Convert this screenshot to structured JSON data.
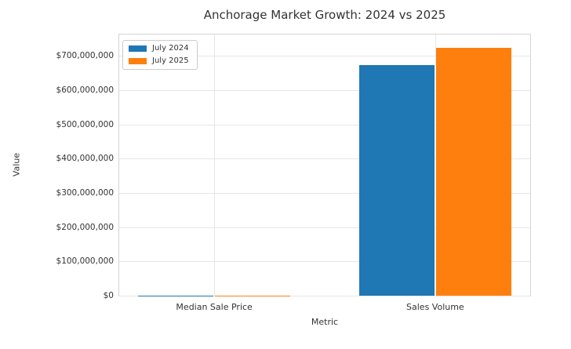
{
  "chart_data": {
    "type": "bar",
    "title": "Anchorage Market Growth: 2024 vs 2025",
    "xlabel": "Metric",
    "ylabel": "Value",
    "categories": [
      "Median Sale Price",
      "Sales Volume"
    ],
    "series": [
      {
        "name": "July 2024",
        "color": "#1f77b4",
        "values": [
          400000,
          673000000
        ]
      },
      {
        "name": "July 2025",
        "color": "#ff7f0e",
        "values": [
          450000,
          725000000
        ]
      }
    ],
    "yticks": {
      "values": [
        0,
        100000000,
        200000000,
        300000000,
        400000000,
        500000000,
        600000000,
        700000000
      ],
      "labels": [
        "$0",
        "$100,000,000",
        "$200,000,000",
        "$300,000,000",
        "$400,000,000",
        "$500,000,000",
        "$600,000,000",
        "$700,000,000"
      ]
    },
    "ylim": [
      0,
      763000000
    ],
    "xlim": [
      -0.43,
      1.43
    ],
    "bar_width": 0.34,
    "grid": true,
    "legend_position": "upper left"
  },
  "styles": {
    "background": "#ffffff",
    "grid_color": "#e7e7e7",
    "spine_color": "#d5d5d5",
    "text_color": "#333333",
    "legend_border": "#cccccc",
    "series_colors": [
      "#1f77b4",
      "#ff7f0e"
    ]
  }
}
